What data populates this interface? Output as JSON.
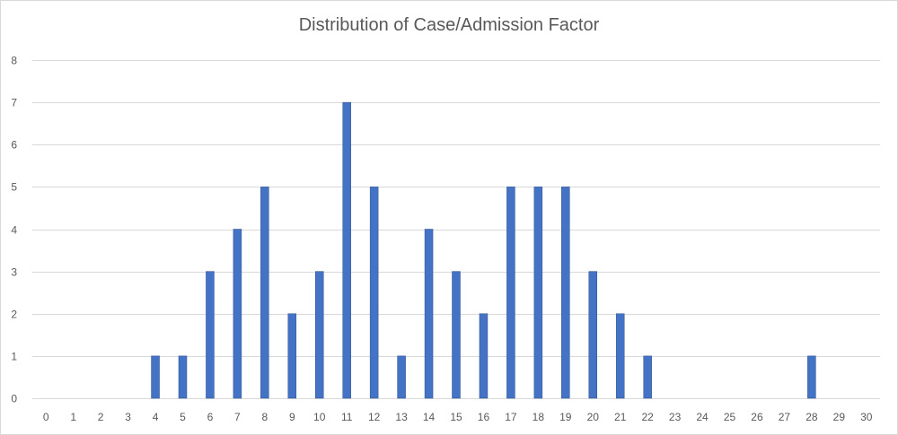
{
  "chart_data": {
    "type": "bar",
    "title": "Distribution of Case/Admission Factor",
    "xlabel": "",
    "ylabel": "",
    "categories": [
      "0",
      "1",
      "2",
      "3",
      "4",
      "5",
      "6",
      "7",
      "8",
      "9",
      "10",
      "11",
      "12",
      "13",
      "14",
      "15",
      "16",
      "17",
      "18",
      "19",
      "20",
      "21",
      "22",
      "23",
      "24",
      "25",
      "26",
      "27",
      "28",
      "29",
      "30"
    ],
    "values": [
      0,
      0,
      0,
      0,
      1,
      1,
      3,
      4,
      5,
      2,
      3,
      7,
      5,
      1,
      4,
      3,
      2,
      5,
      5,
      5,
      3,
      2,
      1,
      0,
      0,
      0,
      0,
      0,
      1,
      0,
      0
    ],
    "ylim": [
      0,
      8
    ],
    "yticks": [
      "0",
      "1",
      "2",
      "3",
      "4",
      "5",
      "6",
      "7",
      "8"
    ],
    "grid": true,
    "legend": "none",
    "colors": {
      "bar_fill": "#4472c4",
      "bar_stroke": "#2f528f",
      "gridline": "#d9d9d9",
      "text": "#595959"
    }
  }
}
